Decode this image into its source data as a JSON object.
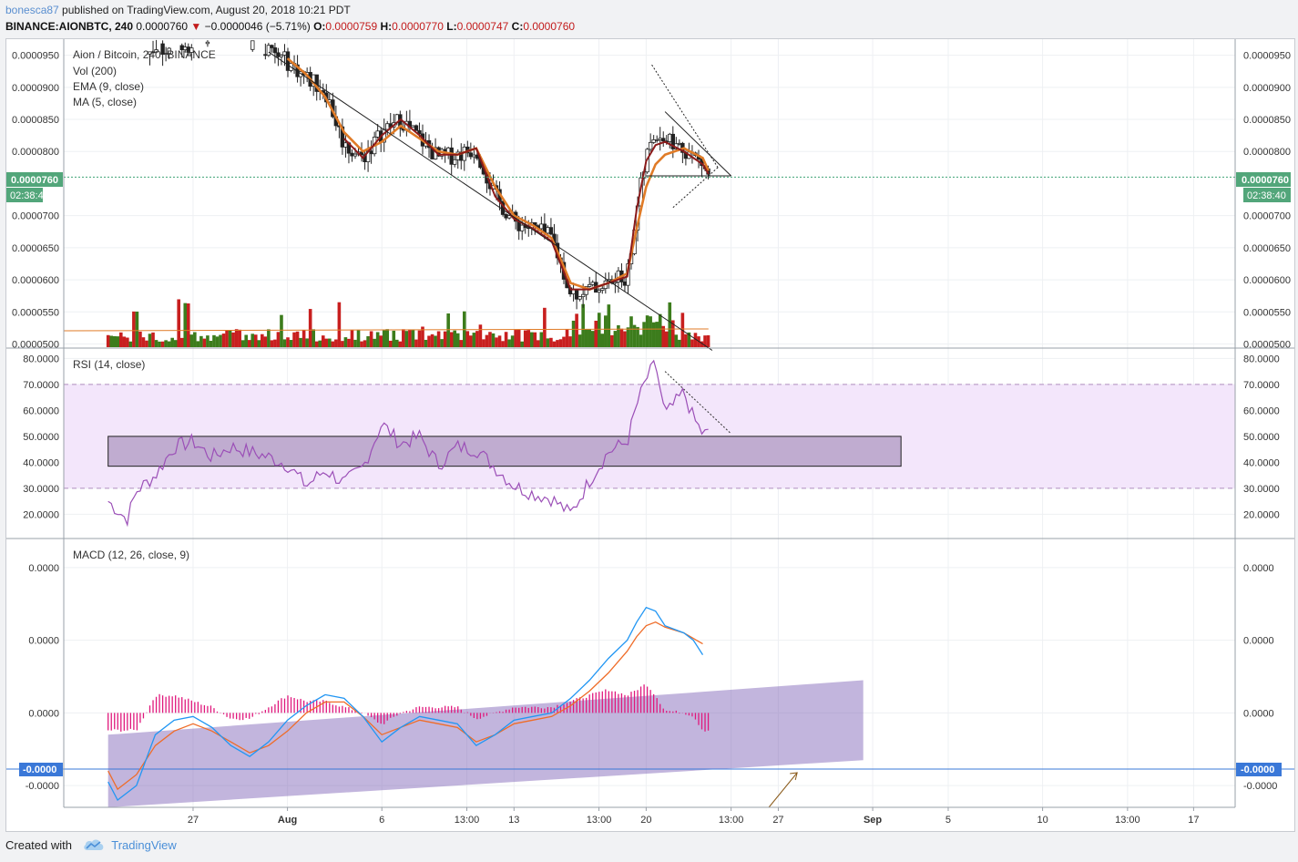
{
  "header": {
    "author": "bonesca87",
    "published_text": " published on TradingView.com, August 20, 2018 10:21 PDT",
    "symbol": "BINANCE:AIONBTC, 240",
    "price": "0.0000760",
    "change": "−0.0000046 (−5.71%)",
    "o_label": "O:",
    "o_value": "0.0000759",
    "h_label": "H:",
    "h_value": "0.0000770",
    "l_label": "L:",
    "l_value": "0.0000747",
    "c_label": "C:",
    "c_value": "0.0000760"
  },
  "legend": {
    "title": "Aion / Bitcoin, 240, BINANCE",
    "vol": "Vol (200)",
    "ema": "EMA (9, close)",
    "ma": "MA (5, close)",
    "rsi": "RSI (14, close)",
    "macd": "MACD (12, 26, close, 9)"
  },
  "price_badge": {
    "value": "0.0000760",
    "timer": "02:38:40"
  },
  "macd_badge": "-0.0000",
  "footer": {
    "created_with": "Created with",
    "brand": "TradingView"
  },
  "colors": {
    "up": "#3c7c1c",
    "down": "#c81f1f",
    "ema": "#e07b27",
    "ma": "#8b1a1a",
    "rsi": "#9b4fb7",
    "rsi_band": "#f3e6fb",
    "macd": "#2196f3",
    "signal": "#ef6c28",
    "hist": "#e0187c",
    "price_line": "#3fa374",
    "badge": "#52a67a",
    "macd_badge": "#3a78d8"
  },
  "chart_data": [
    {
      "type": "candlestick",
      "title": "Aion / Bitcoin, 240, BINANCE",
      "price_axis_ticks": [
        "0.0000950",
        "0.0000900",
        "0.0000850",
        "0.0000800",
        "0.0000700",
        "0.0000650",
        "0.0000600",
        "0.0000550",
        "0.0000500"
      ],
      "ylim": [
        4.95e-05,
        9.75e-05
      ],
      "x_labels": [
        "27",
        "Aug",
        "6",
        "13:00",
        "13",
        "13:00",
        "20",
        "13:00",
        "27",
        "Sep",
        "5",
        "10",
        "13:00",
        "17"
      ],
      "x_label_days": [
        27,
        32,
        37,
        41.5,
        44,
        48.5,
        51,
        55.5,
        58,
        63,
        67,
        72,
        76.5,
        80
      ],
      "close_path": [
        [
          22.5,
          9.85e-05
        ],
        [
          24,
          9.65e-05
        ],
        [
          25.5,
          9.6e-05
        ],
        [
          27,
          9.7e-05
        ],
        [
          28.5,
          9.9e-05
        ],
        [
          30,
          9.7e-05
        ],
        [
          31,
          9.55e-05
        ],
        [
          32,
          9.4e-05
        ],
        [
          33,
          9.15e-05
        ],
        [
          34,
          8.95e-05
        ],
        [
          35,
          8.1e-05
        ],
        [
          36,
          7.9e-05
        ],
        [
          37,
          8.3e-05
        ],
        [
          38,
          8.5e-05
        ],
        [
          39,
          8.2e-05
        ],
        [
          40,
          7.9e-05
        ],
        [
          41,
          7.95e-05
        ],
        [
          42,
          8.05e-05
        ],
        [
          43,
          7.3e-05
        ],
        [
          44,
          6.9e-05
        ],
        [
          45,
          6.8e-05
        ],
        [
          46,
          6.65e-05
        ],
        [
          47,
          5.8e-05
        ],
        [
          48,
          5.85e-05
        ],
        [
          49,
          5.95e-05
        ],
        [
          50,
          6.05e-05
        ],
        [
          50.5,
          7.1e-05
        ],
        [
          51,
          7.9e-05
        ],
        [
          51.5,
          8.3e-05
        ],
        [
          52,
          8.2e-05
        ],
        [
          53,
          8.05e-05
        ],
        [
          54,
          7.8e-05
        ],
        [
          54.3,
          7.6e-05
        ]
      ],
      "ema_path": [
        [
          32,
          9.45e-05
        ],
        [
          33,
          9.2e-05
        ],
        [
          34,
          8.85e-05
        ],
        [
          35,
          8.3e-05
        ],
        [
          36,
          8e-05
        ],
        [
          37,
          8.15e-05
        ],
        [
          38,
          8.4e-05
        ],
        [
          39,
          8.2e-05
        ],
        [
          40,
          8e-05
        ],
        [
          41,
          7.95e-05
        ],
        [
          42,
          8.05e-05
        ],
        [
          43,
          7.45e-05
        ],
        [
          44,
          7e-05
        ],
        [
          45,
          6.85e-05
        ],
        [
          46,
          6.65e-05
        ],
        [
          47,
          5.95e-05
        ],
        [
          48,
          5.85e-05
        ],
        [
          49,
          5.95e-05
        ],
        [
          50,
          6.1e-05
        ],
        [
          50.5,
          6.8e-05
        ],
        [
          51,
          7.45e-05
        ],
        [
          51.5,
          7.8e-05
        ],
        [
          52,
          7.95e-05
        ],
        [
          53,
          8.05e-05
        ],
        [
          54,
          7.9e-05
        ],
        [
          54.3,
          7.7e-05
        ]
      ],
      "ma_path": [
        [
          35,
          8.2e-05
        ],
        [
          36,
          7.9e-05
        ],
        [
          37,
          8.25e-05
        ],
        [
          38,
          8.5e-05
        ],
        [
          39,
          8.25e-05
        ],
        [
          40,
          7.95e-05
        ],
        [
          41,
          7.95e-05
        ],
        [
          42,
          8.05e-05
        ],
        [
          43,
          7.3e-05
        ],
        [
          44,
          6.95e-05
        ],
        [
          45,
          6.8e-05
        ],
        [
          46,
          6.6e-05
        ],
        [
          47,
          5.85e-05
        ],
        [
          48,
          5.85e-05
        ],
        [
          49,
          5.95e-05
        ],
        [
          50,
          6.05e-05
        ],
        [
          50.5,
          7.1e-05
        ],
        [
          51,
          7.85e-05
        ],
        [
          51.5,
          8.1e-05
        ],
        [
          52,
          8.15e-05
        ],
        [
          53,
          8e-05
        ],
        [
          54,
          7.8e-05
        ],
        [
          54.3,
          7.65e-05
        ]
      ],
      "drawn_lines": [
        {
          "from": [
            31,
            9.55e-05
          ],
          "to": [
            54.5,
            4.9e-05
          ],
          "style": "solid"
        },
        {
          "from": [
            51,
            7.62e-05
          ],
          "to": [
            55.5,
            7.62e-05
          ],
          "style": "solid"
        },
        {
          "from": [
            52,
            8.62e-05
          ],
          "to": [
            55.5,
            7.62e-05
          ],
          "style": "solid"
        },
        {
          "from": [
            51.3,
            9.35e-05
          ],
          "to": [
            54.8,
            7.75e-05
          ],
          "style": "dotted"
        },
        {
          "from": [
            54.8,
            7.75e-05
          ],
          "to": [
            52.4,
            7.12e-05
          ],
          "style": "dotted"
        }
      ],
      "current_price": 7.6e-05
    },
    {
      "type": "bar",
      "name": "Vol (200)",
      "note": "volume in arbitrary units, overlaid at bottom of price pane",
      "ylim": [
        0,
        100
      ]
    },
    {
      "type": "line",
      "name": "RSI (14, close)",
      "ticks": [
        "80.0000",
        "70.0000",
        "60.0000",
        "50.0000",
        "40.0000",
        "30.0000",
        "20.0000"
      ],
      "ylim": [
        11,
        84
      ],
      "bands": [
        30,
        70
      ],
      "path": [
        [
          22.5,
          25
        ],
        [
          23.5,
          18
        ],
        [
          24,
          29
        ],
        [
          25,
          35
        ],
        [
          26,
          46
        ],
        [
          27,
          48
        ],
        [
          28,
          42
        ],
        [
          29,
          46
        ],
        [
          30,
          44
        ],
        [
          31,
          42
        ],
        [
          32,
          39
        ],
        [
          33,
          31
        ],
        [
          34,
          37
        ],
        [
          35,
          32
        ],
        [
          36,
          38
        ],
        [
          37,
          55
        ],
        [
          38,
          47
        ],
        [
          39,
          50
        ],
        [
          40,
          39
        ],
        [
          41,
          46
        ],
        [
          42,
          45
        ],
        [
          43,
          38
        ],
        [
          44,
          31
        ],
        [
          45,
          28
        ],
        [
          46,
          26
        ],
        [
          47,
          20
        ],
        [
          48,
          33
        ],
        [
          49,
          44
        ],
        [
          50,
          48
        ],
        [
          50.5,
          62
        ],
        [
          51,
          72
        ],
        [
          51.5,
          78
        ],
        [
          52,
          58
        ],
        [
          53,
          67
        ],
        [
          53.5,
          57
        ],
        [
          54,
          51
        ],
        [
          54.3,
          51
        ]
      ],
      "box": {
        "from": [
          22.5,
          50
        ],
        "to": [
          64.5,
          38.5
        ]
      },
      "dotted": {
        "from": [
          52,
          75
        ],
        "to": [
          55.5,
          51
        ]
      }
    },
    {
      "type": "line",
      "name": "MACD (12, 26, close, 9)",
      "ticks": [
        "0.0000",
        "0.0000",
        "0.0000",
        "-0.0000"
      ],
      "ylim": [
        -130,
        240
      ],
      "zero_level": 0,
      "macd_path": [
        [
          22.5,
          -95
        ],
        [
          23,
          -120
        ],
        [
          24,
          -100
        ],
        [
          25,
          -30
        ],
        [
          26,
          -10
        ],
        [
          27,
          -5
        ],
        [
          28,
          -20
        ],
        [
          29,
          -45
        ],
        [
          30,
          -60
        ],
        [
          31,
          -40
        ],
        [
          32,
          -10
        ],
        [
          33,
          10
        ],
        [
          34,
          25
        ],
        [
          35,
          20
        ],
        [
          36,
          -5
        ],
        [
          37,
          -40
        ],
        [
          38,
          -20
        ],
        [
          39,
          -5
        ],
        [
          40,
          -10
        ],
        [
          41,
          -15
        ],
        [
          42,
          -45
        ],
        [
          43,
          -30
        ],
        [
          44,
          -10
        ],
        [
          45,
          -5
        ],
        [
          46,
          0
        ],
        [
          47,
          20
        ],
        [
          48,
          45
        ],
        [
          49,
          75
        ],
        [
          50,
          100
        ],
        [
          50.5,
          125
        ],
        [
          51,
          145
        ],
        [
          51.5,
          140
        ],
        [
          52,
          120
        ],
        [
          53,
          110
        ],
        [
          53.5,
          100
        ],
        [
          54,
          80
        ]
      ],
      "signal_path": [
        [
          22.5,
          -80
        ],
        [
          23,
          -105
        ],
        [
          24,
          -85
        ],
        [
          25,
          -45
        ],
        [
          26,
          -25
        ],
        [
          27,
          -15
        ],
        [
          28,
          -25
        ],
        [
          29,
          -40
        ],
        [
          30,
          -55
        ],
        [
          31,
          -45
        ],
        [
          32,
          -25
        ],
        [
          33,
          0
        ],
        [
          34,
          15
        ],
        [
          35,
          15
        ],
        [
          36,
          -5
        ],
        [
          37,
          -30
        ],
        [
          38,
          -20
        ],
        [
          39,
          -10
        ],
        [
          40,
          -15
        ],
        [
          41,
          -20
        ],
        [
          42,
          -40
        ],
        [
          43,
          -30
        ],
        [
          44,
          -15
        ],
        [
          45,
          -10
        ],
        [
          46,
          -5
        ],
        [
          47,
          10
        ],
        [
          48,
          30
        ],
        [
          49,
          55
        ],
        [
          50,
          85
        ],
        [
          50.5,
          105
        ],
        [
          51,
          120
        ],
        [
          51.5,
          125
        ],
        [
          52,
          118
        ],
        [
          53,
          110
        ],
        [
          54,
          95
        ]
      ],
      "channel": {
        "bl": [
          22.5,
          -130
        ],
        "br": [
          62.5,
          -65
        ],
        "tr": [
          62.5,
          45
        ],
        "tl": [
          22.5,
          -30
        ]
      },
      "arrow": {
        "from": [
          57.5,
          -185
        ],
        "to": [
          59,
          -130
        ]
      }
    }
  ]
}
